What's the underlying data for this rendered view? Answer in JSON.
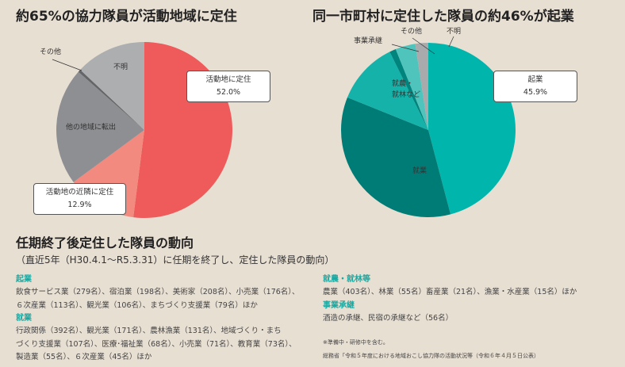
{
  "chart_data": [
    {
      "type": "pie",
      "title": "約65%の協力隊員が活動地域に定住",
      "slices": [
        {
          "label": "活動地に定住",
          "value": 52.0,
          "value_label": "52.0%",
          "color": "#ef5a5b"
        },
        {
          "label": "活動地の近隣に定住",
          "value": 12.9,
          "value_label": "12.9%",
          "color": "#f28a7f"
        },
        {
          "label": "他の地域に転出",
          "value": 21.6,
          "color": "#8e8f92"
        },
        {
          "label": "その他",
          "value": 0.5,
          "color": "#646568"
        },
        {
          "label": "不明",
          "value": 13.0,
          "color": "#adaeb0"
        }
      ]
    },
    {
      "type": "pie",
      "title": "同一市町村に定住した隊員の約46%が起業",
      "slices": [
        {
          "label": "起業",
          "value": 45.9,
          "value_label": "45.9%",
          "color": "#00b5ac"
        },
        {
          "label": "就業",
          "value": 35.2,
          "color": "#007c76"
        },
        {
          "label": "就農・就林など",
          "value": 11.6,
          "color": "#14b2a9"
        },
        {
          "label": "事業承継",
          "value": 1.2,
          "color": "#00847d"
        },
        {
          "label": "その他",
          "value": 3.7,
          "color": "#4ec4bd"
        },
        {
          "label": "不明",
          "value": 2.4,
          "color": "#a9aaac"
        }
      ]
    }
  ],
  "left_labels": {
    "settled": "活動地に定住",
    "settled_pct": "52.0%",
    "nearby": "活動地の近隣に定住",
    "nearby_pct": "12.9%",
    "other_region": "他の地域に転出",
    "other": "その他",
    "unknown": "不明"
  },
  "right_labels": {
    "startup": "起業",
    "startup_pct": "45.9%",
    "employment": "就業",
    "farming_line1": "就農・",
    "farming_line2": "就林など",
    "succession": "事業承継",
    "other": "その他",
    "unknown": "不明"
  },
  "section": {
    "title": "任期終了後定住した隊員の動向",
    "subtitle": "（直近5年（H30.4.1～R5.3.31）に任期を終了し、定住した隊員の動向）",
    "startup_head": "起業",
    "startup_text": [
      "飲食サービス業（279名）、宿泊業（198名）、美術家（208名）、小売業（176名）、",
      "６次産業（113名）、観光業（106名）、まちづくり支援業（79名）ほか"
    ],
    "employment_head": "就業",
    "employment_text": [
      "行政関係（392名）、観光業（171名）、農林漁業（131名）、地域づくり・まち",
      "づくり支援業（107名）、医療･福祉業（68名）、小売業（71名）、教育業（73名）、",
      "製造業（55名）、６次産業（45名）ほか"
    ],
    "farming_head": "就農・就林等",
    "farming_text": "農業（403名）、林業（55名）畜産業（21名）、漁業・水産業（15名）ほか",
    "succession_head": "事業承継",
    "succession_text": "酒造の承継、民宿の承継など（56名）",
    "note": "※準備中・研修中を含む。",
    "source": "総務省「令和５年度における地域おこし協力隊の活動状況等（令和６年４月５日公表）"
  }
}
